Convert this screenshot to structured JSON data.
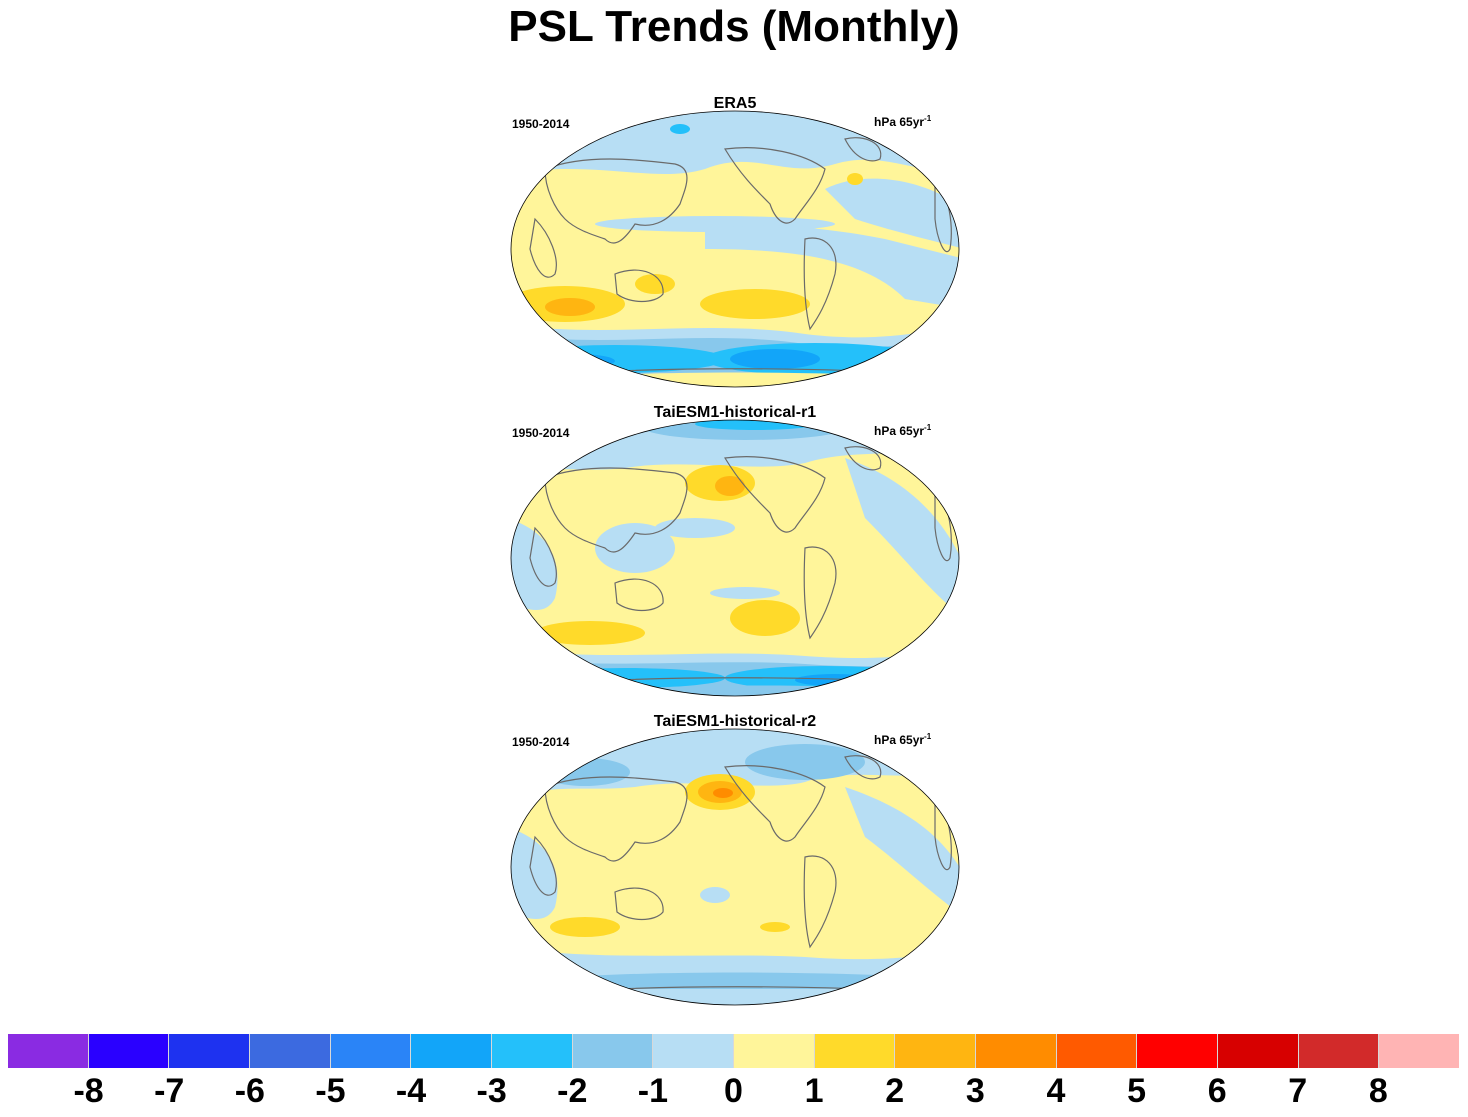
{
  "title": "PSL Trends (Monthly)",
  "panels": [
    {
      "name": "ERA5",
      "period": "1950-2014",
      "units": "hPa 65yr",
      "units_sup": "-1"
    },
    {
      "name": "TaiESM1-historical-r1",
      "period": "1950-2014",
      "units": "hPa 65yr",
      "units_sup": "-1"
    },
    {
      "name": "TaiESM1-historical-r2",
      "period": "1950-2014",
      "units": "hPa 65yr",
      "units_sup": "-1"
    }
  ],
  "colorbar": {
    "labels": [
      "-8",
      "-7",
      "-6",
      "-5",
      "-4",
      "-3",
      "-2",
      "-1",
      "0",
      "1",
      "2",
      "3",
      "4",
      "5",
      "6",
      "7",
      "8"
    ],
    "colors": [
      "#8a2be2",
      "#2a00ff",
      "#1e32f0",
      "#3c6ae0",
      "#2a84f7",
      "#12a5f9",
      "#24c0fa",
      "#88c8ec",
      "#b7def4",
      "#fff59a",
      "#ffda2a",
      "#ffb511",
      "#ff8c00",
      "#ff5a00",
      "#ff0000",
      "#d70000",
      "#d22a2a",
      "#ffb4b4"
    ]
  },
  "map_colors": {
    "weak_neg": "#b7def4",
    "neg1": "#88c8ec",
    "neg2": "#24c0fa",
    "neg3": "#12a5f9",
    "weak_pos": "#fff59a",
    "pos1": "#ffda2a",
    "pos2": "#ffb511",
    "pos3": "#ff8c00",
    "coast": "#6a6a6a"
  }
}
